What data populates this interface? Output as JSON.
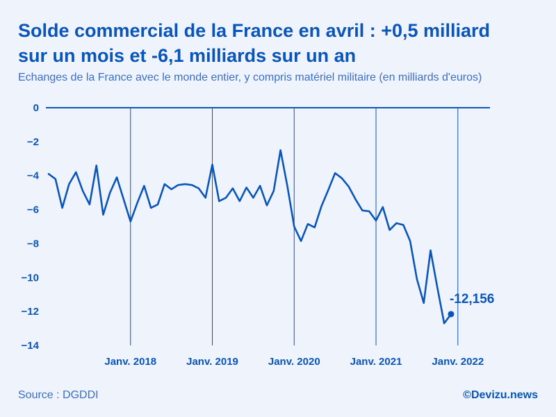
{
  "colors": {
    "accent": "#0a55b8",
    "text_light": "#3a6fc4",
    "background": "#eef3fc"
  },
  "header": {
    "title_line1": "Solde commercial de la France en avril : +0,5 milliard",
    "title_line2": "sur un mois et -6,1 milliards sur un an",
    "subtitle": "Echanges de la France avec le monde entier, y compris matériel militaire (en milliards d'euros)"
  },
  "footer": {
    "source": "Source : DGDDI",
    "credit": "©Devizu.news"
  },
  "chart_data": {
    "type": "line",
    "title": "Solde commercial de la France",
    "ylabel": "milliards d'euros",
    "ylim": [
      -14,
      0
    ],
    "yticks": [
      0,
      -2,
      -4,
      -6,
      -8,
      -10,
      -12,
      -14
    ],
    "ytick_labels": [
      "0",
      "−2",
      "−4",
      "−6",
      "−8",
      "−10",
      "−12",
      "−14"
    ],
    "xlim": [
      2017.0,
      2022.333
    ],
    "xticks": [
      {
        "x": 2018.0,
        "label": "Janv. 2018"
      },
      {
        "x": 2019.0,
        "label": "Janv. 2019"
      },
      {
        "x": 2020.0,
        "label": "Janv. 2020"
      },
      {
        "x": 2021.0,
        "label": "Janv. 2021"
      },
      {
        "x": 2022.0,
        "label": "Janv. 2022"
      }
    ],
    "series": [
      {
        "name": "Solde commercial",
        "x_start": 2017.0,
        "x_step": 0.08333,
        "values": [
          -3.9,
          -4.2,
          -5.9,
          -4.5,
          -3.8,
          -4.9,
          -5.7,
          -3.4,
          -6.3,
          -5.0,
          -4.1,
          -5.4,
          -6.7,
          -5.6,
          -4.6,
          -5.9,
          -5.7,
          -4.5,
          -4.8,
          -4.55,
          -4.5,
          -4.55,
          -4.75,
          -5.3,
          -3.35,
          -5.5,
          -5.3,
          -4.75,
          -5.5,
          -4.7,
          -5.3,
          -4.6,
          -5.75,
          -4.9,
          -2.5,
          -4.6,
          -7.0,
          -7.85,
          -6.85,
          -7.05,
          -5.8,
          -4.85,
          -3.85,
          -4.15,
          -4.65,
          -5.4,
          -6.05,
          -6.1,
          -6.65,
          -5.85,
          -7.2,
          -6.8,
          -6.9,
          -7.85,
          -10.1,
          -11.5,
          -8.4,
          -10.6,
          -12.7,
          -12.156
        ]
      }
    ],
    "last_point_label": "-12,156",
    "grid": "vertical at January ticks, horizontal at zero"
  }
}
